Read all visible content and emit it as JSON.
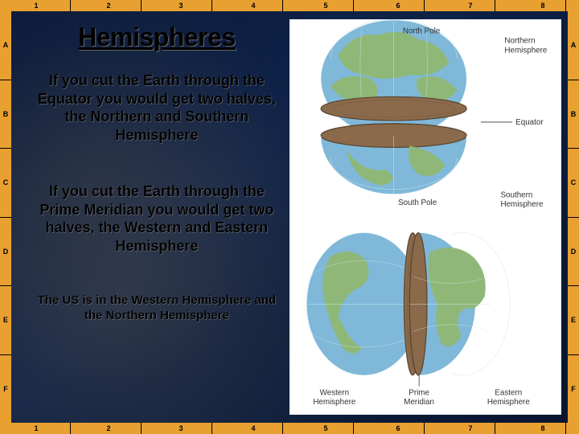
{
  "frame": {
    "top_numbers": [
      "1",
      "2",
      "3",
      "4",
      "5",
      "6",
      "7",
      "8"
    ],
    "bottom_numbers": [
      "1",
      "2",
      "3",
      "4",
      "5",
      "6",
      "7",
      "8"
    ],
    "left_letters": [
      "A",
      "B",
      "C",
      "D",
      "E",
      "F"
    ],
    "right_letters": [
      "A",
      "B",
      "C",
      "D",
      "E",
      "F"
    ],
    "frame_color": "#e8a030",
    "slide_bg": "#0a1a3a"
  },
  "title": "Hemispheres",
  "para1": "If you cut the Earth through the Equator you would get two halves, the Northern and Southern Hemisphere",
  "para2": "If you cut the Earth through the Prime Meridian you would get two halves, the Western and Eastern Hemisphere",
  "para3": "The US is in the Western Hemisphere and the Northern Hemisphere",
  "diagram_top": {
    "labels": {
      "north_pole": "North Pole",
      "northern": "Northern\nHemisphere",
      "equator": "Equator",
      "south_pole": "South Pole",
      "southern": "Southern\nHemisphere"
    },
    "colors": {
      "ocean": "#7fb8d8",
      "land": "#8fb878",
      "shadow": "#5a7a58",
      "cut_surface": "#8a6a4a",
      "cut_rim": "#5a4530"
    }
  },
  "diagram_bottom": {
    "labels": {
      "western": "Western\nHemisphere",
      "prime": "Prime\nMeridian",
      "eastern": "Eastern\nHemisphere"
    },
    "colors": {
      "ocean": "#7fb8d8",
      "land": "#8fb878",
      "shadow": "#5a7a58",
      "cut_surface": "#8a6a4a",
      "cut_rim": "#5a4530"
    }
  }
}
